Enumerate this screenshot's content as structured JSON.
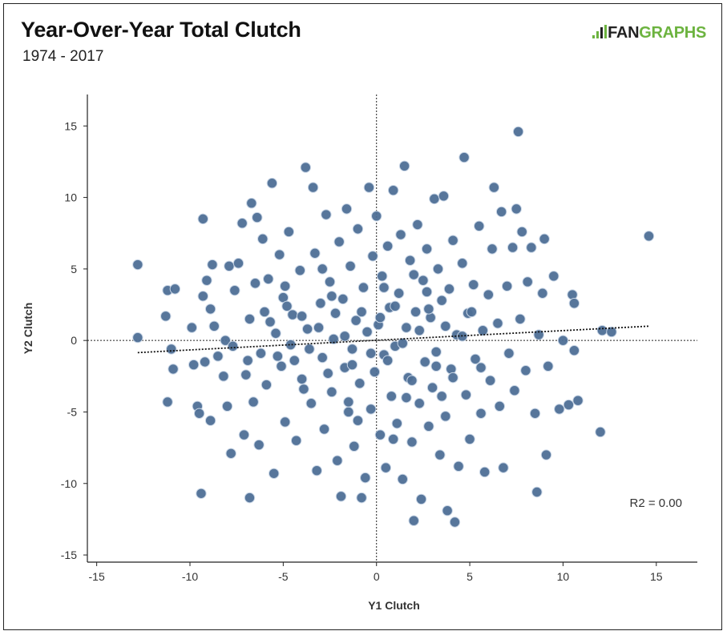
{
  "header": {
    "title": "Year-Over-Year Total Clutch",
    "subtitle": "1974 - 2017"
  },
  "logo": {
    "prefix": "FAN",
    "suffix": "GRAPHS",
    "prefix_color": "#222222",
    "suffix_color": "#6cb33f"
  },
  "colors": {
    "point_fill": "#4e6f96",
    "point_stroke": "#c9d6e6"
  },
  "chart_data": {
    "type": "scatter",
    "title": "Year-Over-Year Total Clutch",
    "subtitle": "1974 - 2017",
    "xlabel": "Y1 Clutch",
    "ylabel": "Y2 Clutch",
    "xlim": [
      -15.5,
      17.2
    ],
    "ylim": [
      -15.5,
      17.2
    ],
    "xticks": [
      -15,
      -10,
      -5,
      0,
      5,
      10,
      15
    ],
    "yticks": [
      -15,
      -10,
      -5,
      0,
      5,
      10,
      15
    ],
    "grid": false,
    "legend": "none",
    "annotation": "R2 = 0.00",
    "trendline": {
      "x": [
        -12.8,
        14.6
      ],
      "y": [
        -0.85,
        1.0
      ]
    },
    "reference_lines": {
      "x": 0,
      "y": 0
    },
    "series": [
      {
        "points": [
          [
            -12.8,
            5.3
          ],
          [
            -12.8,
            0.2
          ],
          [
            -11.2,
            3.5
          ],
          [
            -11.0,
            -0.6
          ],
          [
            -11.2,
            -4.3
          ],
          [
            -10.9,
            -2.0
          ],
          [
            -11.3,
            1.7
          ],
          [
            -10.8,
            3.6
          ],
          [
            -9.9,
            0.9
          ],
          [
            -9.8,
            -1.7
          ],
          [
            -9.6,
            -4.6
          ],
          [
            -9.5,
            -5.1
          ],
          [
            -9.4,
            -10.7
          ],
          [
            -9.2,
            -1.5
          ],
          [
            -9.3,
            3.1
          ],
          [
            -9.1,
            4.2
          ],
          [
            -8.9,
            2.2
          ],
          [
            -8.9,
            -5.6
          ],
          [
            -8.8,
            5.3
          ],
          [
            -9.3,
            8.5
          ],
          [
            -8.7,
            1.0
          ],
          [
            -8.2,
            -2.5
          ],
          [
            -8.1,
            0.0
          ],
          [
            -8.0,
            -4.6
          ],
          [
            -7.9,
            5.2
          ],
          [
            -7.8,
            -7.9
          ],
          [
            -7.6,
            3.5
          ],
          [
            -7.4,
            5.4
          ],
          [
            -7.2,
            8.2
          ],
          [
            -7.1,
            -6.6
          ],
          [
            -6.9,
            -1.4
          ],
          [
            -6.8,
            1.5
          ],
          [
            -6.8,
            -11.0
          ],
          [
            -6.7,
            9.6
          ],
          [
            -6.6,
            -4.3
          ],
          [
            -6.5,
            4.0
          ],
          [
            -6.4,
            8.6
          ],
          [
            -6.3,
            -7.3
          ],
          [
            -6.1,
            7.1
          ],
          [
            -6.0,
            2.0
          ],
          [
            -5.9,
            -3.1
          ],
          [
            -5.8,
            4.3
          ],
          [
            -5.6,
            11.0
          ],
          [
            -5.5,
            -9.3
          ],
          [
            -5.4,
            0.5
          ],
          [
            -5.2,
            6.0
          ],
          [
            -5.1,
            -1.8
          ],
          [
            -5.0,
            3.0
          ],
          [
            -4.9,
            -5.7
          ],
          [
            -4.7,
            7.6
          ],
          [
            -4.6,
            -0.3
          ],
          [
            -4.5,
            1.8
          ],
          [
            -4.3,
            -7.0
          ],
          [
            -4.1,
            4.9
          ],
          [
            -4.0,
            -2.7
          ],
          [
            -3.8,
            12.1
          ],
          [
            -3.7,
            0.8
          ],
          [
            -3.5,
            -4.4
          ],
          [
            -3.4,
            10.7
          ],
          [
            -3.3,
            6.1
          ],
          [
            -3.2,
            -9.1
          ],
          [
            -3.0,
            2.6
          ],
          [
            -2.9,
            -1.2
          ],
          [
            -2.8,
            -6.2
          ],
          [
            -2.7,
            8.8
          ],
          [
            -2.5,
            4.1
          ],
          [
            -2.4,
            -3.6
          ],
          [
            -2.3,
            0.1
          ],
          [
            -2.1,
            -8.4
          ],
          [
            -2.0,
            6.9
          ],
          [
            -1.9,
            -10.9
          ],
          [
            -1.8,
            2.9
          ],
          [
            -1.7,
            -1.9
          ],
          [
            -1.6,
            9.2
          ],
          [
            -1.5,
            -5.0
          ],
          [
            -1.4,
            5.2
          ],
          [
            -1.3,
            -0.6
          ],
          [
            -1.2,
            -7.4
          ],
          [
            -1.1,
            1.4
          ],
          [
            -1.0,
            7.8
          ],
          [
            -0.9,
            -3.0
          ],
          [
            -0.8,
            -11.0
          ],
          [
            -0.7,
            3.7
          ],
          [
            -0.6,
            -9.6
          ],
          [
            -0.5,
            0.6
          ],
          [
            -0.4,
            10.7
          ],
          [
            -0.3,
            -4.8
          ],
          [
            -0.2,
            5.9
          ],
          [
            -0.1,
            -2.2
          ],
          [
            0.0,
            8.7
          ],
          [
            0.1,
            1.1
          ],
          [
            0.2,
            -6.6
          ],
          [
            0.3,
            4.5
          ],
          [
            0.4,
            -1.0
          ],
          [
            0.5,
            -8.9
          ],
          [
            0.6,
            6.6
          ],
          [
            0.7,
            2.3
          ],
          [
            0.8,
            -3.9
          ],
          [
            0.9,
            10.5
          ],
          [
            1.0,
            -0.4
          ],
          [
            1.1,
            -5.8
          ],
          [
            1.2,
            3.3
          ],
          [
            1.3,
            7.4
          ],
          [
            1.4,
            -9.7
          ],
          [
            1.5,
            12.2
          ],
          [
            1.6,
            0.9
          ],
          [
            1.7,
            -2.6
          ],
          [
            1.8,
            5.6
          ],
          [
            1.9,
            -7.1
          ],
          [
            2.0,
            -12.6
          ],
          [
            2.1,
            2.0
          ],
          [
            2.2,
            8.1
          ],
          [
            2.3,
            -4.4
          ],
          [
            2.4,
            -11.1
          ],
          [
            2.5,
            4.2
          ],
          [
            2.6,
            -1.5
          ],
          [
            2.7,
            6.4
          ],
          [
            2.8,
            -6.0
          ],
          [
            2.9,
            1.6
          ],
          [
            3.0,
            -3.3
          ],
          [
            3.1,
            9.9
          ],
          [
            3.2,
            -0.8
          ],
          [
            3.3,
            5.0
          ],
          [
            3.4,
            -8.0
          ],
          [
            3.5,
            2.8
          ],
          [
            3.6,
            10.1
          ],
          [
            3.7,
            -5.3
          ],
          [
            3.8,
            -11.9
          ],
          [
            3.9,
            3.6
          ],
          [
            4.0,
            -2.0
          ],
          [
            4.1,
            7.0
          ],
          [
            4.2,
            -12.7
          ],
          [
            4.3,
            0.4
          ],
          [
            4.4,
            -8.8
          ],
          [
            4.6,
            5.4
          ],
          [
            4.7,
            12.8
          ],
          [
            4.8,
            -3.8
          ],
          [
            4.9,
            1.9
          ],
          [
            5.0,
            -6.9
          ],
          [
            5.2,
            3.9
          ],
          [
            5.3,
            -1.3
          ],
          [
            5.5,
            8.0
          ],
          [
            5.6,
            -5.1
          ],
          [
            5.7,
            0.7
          ],
          [
            5.8,
            -9.2
          ],
          [
            6.0,
            3.2
          ],
          [
            6.1,
            -2.8
          ],
          [
            6.2,
            6.4
          ],
          [
            6.3,
            10.7
          ],
          [
            6.5,
            1.2
          ],
          [
            6.6,
            -4.6
          ],
          [
            6.7,
            9.0
          ],
          [
            6.8,
            -8.9
          ],
          [
            7.0,
            3.8
          ],
          [
            7.1,
            -0.9
          ],
          [
            7.3,
            6.5
          ],
          [
            7.4,
            -3.5
          ],
          [
            7.5,
            9.2
          ],
          [
            7.6,
            14.6
          ],
          [
            7.7,
            1.5
          ],
          [
            7.8,
            7.6
          ],
          [
            8.0,
            -2.1
          ],
          [
            8.1,
            4.1
          ],
          [
            8.3,
            6.5
          ],
          [
            8.5,
            -5.1
          ],
          [
            8.6,
            -10.6
          ],
          [
            8.7,
            0.4
          ],
          [
            8.9,
            3.3
          ],
          [
            9.1,
            -8.0
          ],
          [
            9.0,
            7.1
          ],
          [
            9.2,
            -1.8
          ],
          [
            9.5,
            4.5
          ],
          [
            9.8,
            -4.8
          ],
          [
            10.0,
            0.0
          ],
          [
            10.3,
            -4.5
          ],
          [
            10.5,
            3.2
          ],
          [
            10.6,
            -0.7
          ],
          [
            10.6,
            2.6
          ],
          [
            10.8,
            -4.2
          ],
          [
            12.0,
            -6.4
          ],
          [
            12.1,
            0.7
          ],
          [
            12.6,
            0.6
          ],
          [
            14.6,
            7.3
          ],
          [
            -8.5,
            -1.1
          ],
          [
            -7.7,
            -0.4
          ],
          [
            -7.0,
            -2.4
          ],
          [
            -6.2,
            -0.9
          ],
          [
            -5.7,
            1.3
          ],
          [
            -5.3,
            -1.1
          ],
          [
            -4.8,
            2.4
          ],
          [
            -4.4,
            -1.4
          ],
          [
            -4.0,
            1.7
          ],
          [
            -3.6,
            -0.6
          ],
          [
            -3.1,
            0.9
          ],
          [
            -2.6,
            -2.3
          ],
          [
            -2.2,
            1.9
          ],
          [
            -1.7,
            0.3
          ],
          [
            -1.3,
            -1.7
          ],
          [
            -0.8,
            2.0
          ],
          [
            -0.3,
            -0.9
          ],
          [
            0.2,
            1.6
          ],
          [
            0.6,
            -1.4
          ],
          [
            1.0,
            2.4
          ],
          [
            1.4,
            -0.2
          ],
          [
            1.9,
            -2.8
          ],
          [
            2.3,
            0.7
          ],
          [
            2.8,
            2.2
          ],
          [
            3.2,
            -1.8
          ],
          [
            3.7,
            1.0
          ],
          [
            4.1,
            -2.6
          ],
          [
            4.6,
            0.3
          ],
          [
            5.1,
            2.0
          ],
          [
            5.6,
            -1.9
          ],
          [
            -3.9,
            -3.4
          ],
          [
            -2.4,
            3.1
          ],
          [
            -1.5,
            -4.3
          ],
          [
            0.4,
            3.7
          ],
          [
            1.6,
            -4.0
          ],
          [
            2.7,
            3.4
          ],
          [
            3.5,
            -3.9
          ],
          [
            -4.9,
            3.8
          ],
          [
            -1.0,
            -5.6
          ],
          [
            0.9,
            -6.9
          ],
          [
            -2.9,
            5.0
          ],
          [
            2.0,
            4.6
          ]
        ]
      }
    ]
  }
}
